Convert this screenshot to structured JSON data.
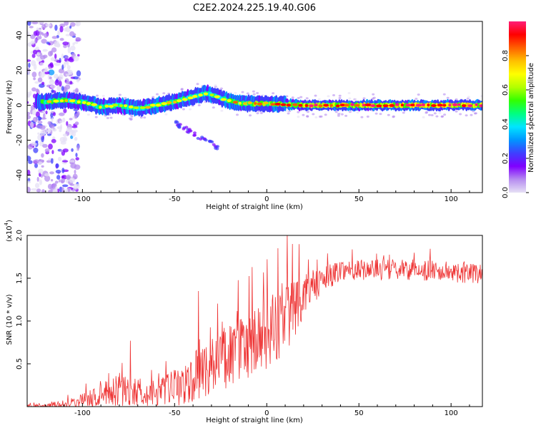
{
  "title": "C2E2.2024.225.19.40.G06",
  "chart_data": [
    {
      "type": "heatmap",
      "xlabel": "Height of straight line (km)",
      "ylabel": "Frequency (Hz)",
      "xlim": [
        -130,
        117
      ],
      "ylim": [
        -50,
        48
      ],
      "xticks": [
        -100,
        -50,
        0,
        50,
        100
      ],
      "yticks": [
        -40,
        -20,
        0,
        20,
        40
      ],
      "colorbar": {
        "label": "Normalized spectral amplitude",
        "range": [
          0,
          1
        ],
        "ticks": [
          "0.0",
          "0.2",
          "0.4",
          "0.6",
          "0.8"
        ],
        "colors": [
          "#e6e0f5",
          "#b68cf0",
          "#7f00ff",
          "#3f3fff",
          "#0096ff",
          "#00e5ff",
          "#00ff80",
          "#33ff00",
          "#b3ff00",
          "#ffff00",
          "#ffbf00",
          "#ff6000",
          "#ff0000",
          "#ff1e78"
        ]
      },
      "ridge": [
        {
          "x": -120,
          "f": 2,
          "a": 0.65
        },
        {
          "x": -110,
          "f": 3,
          "a": 0.7
        },
        {
          "x": -100,
          "f": 2,
          "a": 0.7
        },
        {
          "x": -90,
          "f": -1,
          "a": 0.65
        },
        {
          "x": -80,
          "f": 0,
          "a": 0.62
        },
        {
          "x": -70,
          "f": -2,
          "a": 0.6
        },
        {
          "x": -60,
          "f": 0,
          "a": 0.7
        },
        {
          "x": -50,
          "f": 2,
          "a": 0.68
        },
        {
          "x": -40,
          "f": 5,
          "a": 0.62
        },
        {
          "x": -32,
          "f": 7,
          "a": 0.6
        },
        {
          "x": -25,
          "f": 4,
          "a": 0.66
        },
        {
          "x": -15,
          "f": 1,
          "a": 0.75
        },
        {
          "x": 0,
          "f": 1,
          "a": 0.8
        },
        {
          "x": 20,
          "f": 0,
          "a": 0.88
        },
        {
          "x": 50,
          "f": 0,
          "a": 0.92
        },
        {
          "x": 80,
          "f": 0,
          "a": 0.95
        },
        {
          "x": 117,
          "f": 0,
          "a": 0.95
        }
      ]
    },
    {
      "type": "line",
      "xlabel": "Height of straight line (km)",
      "ylabel": "SNR (10 * v/v)",
      "multiplier": "(x10",
      "multiplier_exp": "4",
      "xlim": [
        -130,
        117
      ],
      "ylim": [
        0,
        2.0
      ],
      "xticks": [
        -100,
        -50,
        0,
        50,
        100
      ],
      "yticks": [
        0.5,
        1.0,
        1.5,
        2.0
      ],
      "yticklabels": [
        "0.5",
        "1.0",
        "1.5",
        "2.0"
      ],
      "series_color": "#ee3333",
      "envelope": [
        {
          "x": -130,
          "base": 0.0,
          "amp": 0.02
        },
        {
          "x": -110,
          "base": 0.03,
          "amp": 0.04
        },
        {
          "x": -95,
          "base": 0.1,
          "amp": 0.1
        },
        {
          "x": -80,
          "base": 0.2,
          "amp": 0.2
        },
        {
          "x": -60,
          "base": 0.15,
          "amp": 0.15
        },
        {
          "x": -45,
          "base": 0.25,
          "amp": 0.25
        },
        {
          "x": -30,
          "base": 0.5,
          "amp": 0.35
        },
        {
          "x": -15,
          "base": 0.65,
          "amp": 0.4
        },
        {
          "x": 0,
          "base": 0.8,
          "amp": 0.45
        },
        {
          "x": 12,
          "base": 1.1,
          "amp": 0.45
        },
        {
          "x": 22,
          "base": 1.35,
          "amp": 0.2
        },
        {
          "x": 40,
          "base": 1.6,
          "amp": 0.12
        },
        {
          "x": 80,
          "base": 1.6,
          "amp": 0.12
        },
        {
          "x": 117,
          "base": 1.55,
          "amp": 0.12
        }
      ],
      "spikes": [
        {
          "x": -74,
          "y": 0.77
        },
        {
          "x": -37,
          "y": 1.35
        },
        {
          "x": -8,
          "y": 1.63
        },
        {
          "x": 6,
          "y": 1.85
        },
        {
          "x": 11,
          "y": 2.02
        },
        {
          "x": 14,
          "y": 1.9
        }
      ]
    }
  ]
}
